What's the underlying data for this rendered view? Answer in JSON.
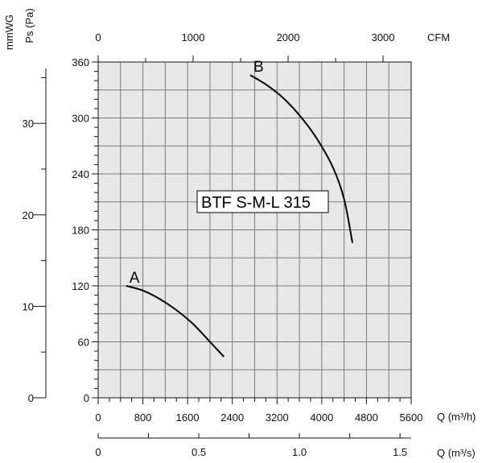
{
  "chart_data": {
    "type": "line",
    "title": "",
    "annotation": "BTF S-M-L 315",
    "plot_background": "#e8e8e8",
    "grid": true,
    "xlabel": "Q (m³/h)",
    "ylabel": "Ps (Pa)",
    "xlim": [
      0,
      5600
    ],
    "ylim": [
      0,
      360
    ],
    "x_ticks": [
      "0",
      "800",
      "1600",
      "2400",
      "3200",
      "4000",
      "4800",
      "5600"
    ],
    "y_ticks": [
      "0",
      "60",
      "120",
      "180",
      "240",
      "300",
      "360"
    ],
    "secondary_axes": {
      "top_cfm": {
        "label": "CFM",
        "ticks": [
          "0",
          "1000",
          "2000",
          "3000"
        ],
        "values": [
          0,
          1000,
          2000,
          3000
        ]
      },
      "bottom_m3s": {
        "label": "Q (m³/s)",
        "ticks": [
          "0",
          "0.5",
          "1.0",
          "1.5"
        ],
        "values": [
          0,
          0.5,
          1.0,
          1.5
        ]
      },
      "left_mmwg": {
        "label": "mmWG",
        "ticks": [
          "0",
          "10",
          "20",
          "30"
        ],
        "values": [
          0,
          10,
          20,
          30
        ]
      }
    },
    "series": [
      {
        "name": "A",
        "x": [
          500,
          800,
          1100,
          1400,
          1700,
          2000,
          2250
        ],
        "y": [
          120,
          115,
          106,
          94,
          79,
          60,
          44
        ]
      },
      {
        "name": "B",
        "x": [
          2720,
          3000,
          3300,
          3600,
          3900,
          4200,
          4400,
          4550
        ],
        "y": [
          346,
          336,
          322,
          303,
          279,
          247,
          213,
          166
        ]
      }
    ]
  }
}
